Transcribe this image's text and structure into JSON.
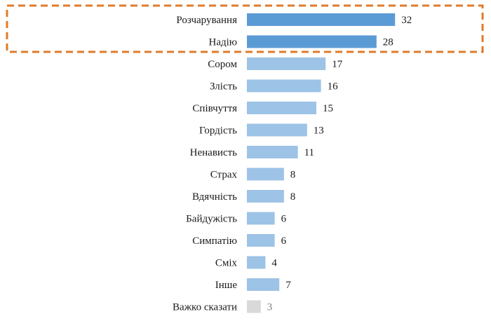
{
  "chart_data": {
    "type": "bar",
    "orientation": "horizontal",
    "categories": [
      "Розчарування",
      "Надію",
      "Сором",
      "Злість",
      "Співчуття",
      "Гордість",
      "Ненависть",
      "Страх",
      "Вдячність",
      "Байдужість",
      "Симпатію",
      "Сміх",
      "Інше",
      "Важко сказати"
    ],
    "values": [
      32,
      28,
      17,
      16,
      15,
      13,
      11,
      8,
      8,
      6,
      6,
      4,
      7,
      3
    ],
    "highlighted_categories": [
      "Розчарування",
      "Надію"
    ],
    "title": "",
    "xlabel": "",
    "ylabel": "",
    "grid": false,
    "legend": "none",
    "colors": {
      "highlight_bar": "#5b9bd5",
      "normal_bar": "#9dc3e6",
      "neutral_bar": "#d9d9d9",
      "highlight_box": "#e07b2a",
      "label_text": "#1a1a1a",
      "neutral_value_text": "#7f7f7f"
    }
  }
}
